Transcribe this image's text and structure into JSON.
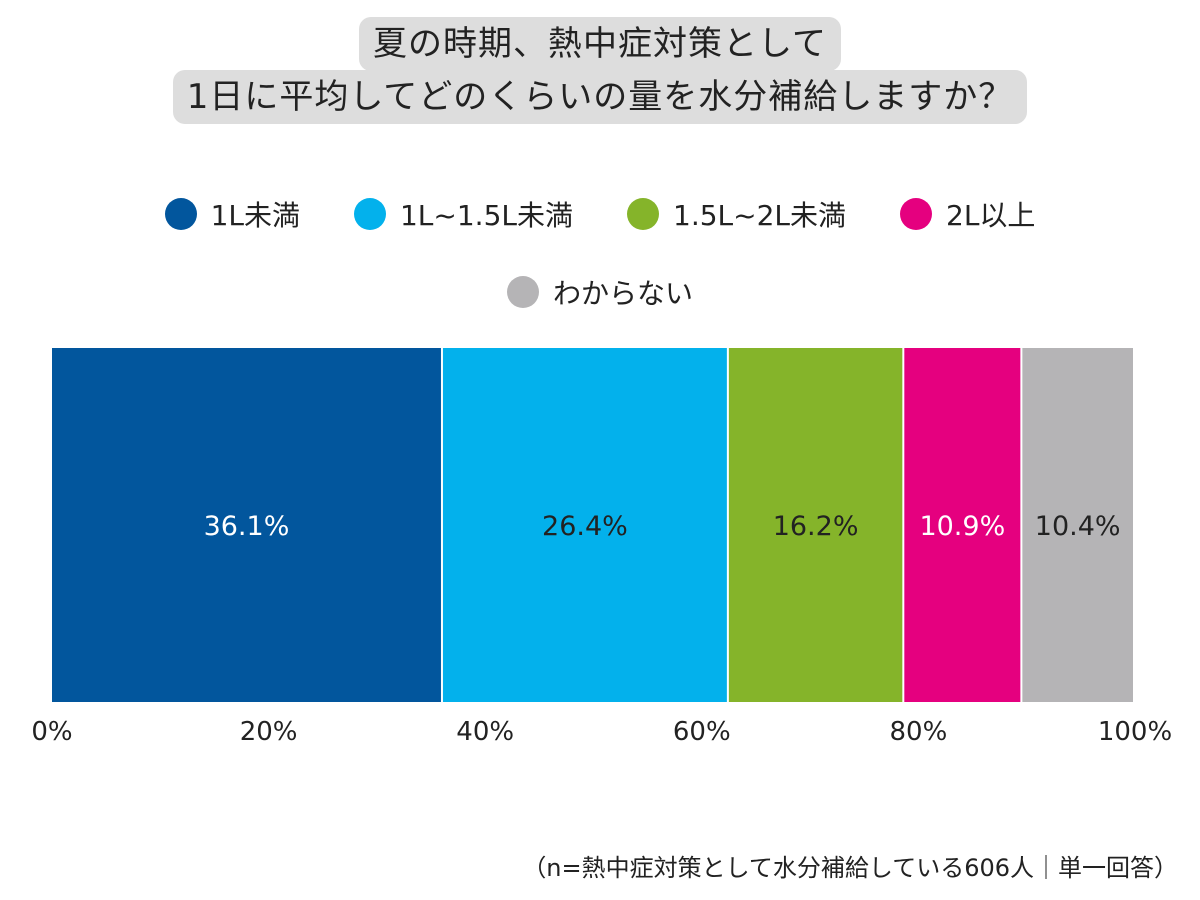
{
  "title": {
    "line1": "夏の時期、熱中症対策として",
    "line2": "1日に平均してどのくらいの量を水分補給しますか？"
  },
  "legend": [
    {
      "label": "1L未満",
      "color": "#02569d"
    },
    {
      "label": "1L~1.5L未満",
      "color": "#03b1ec"
    },
    {
      "label": "1.5L~2L未満",
      "color": "#85b42a"
    },
    {
      "label": "2L以上",
      "color": "#e5007f"
    },
    {
      "label": "わからない",
      "color": "#b5b4b6"
    }
  ],
  "chart_data": {
    "type": "bar",
    "orientation": "horizontal-stacked",
    "categories": [
      ""
    ],
    "series": [
      {
        "name": "1L未満",
        "values": [
          36.1
        ],
        "label": "36.1%",
        "color": "#02569d",
        "label_color": "#ffffff"
      },
      {
        "name": "1L~1.5L未満",
        "values": [
          26.4
        ],
        "label": "26.4%",
        "color": "#03b1ec",
        "label_color": "#222222"
      },
      {
        "name": "1.5L~2L未満",
        "values": [
          16.2
        ],
        "label": "16.2%",
        "color": "#85b42a",
        "label_color": "#222222"
      },
      {
        "name": "2L以上",
        "values": [
          10.9
        ],
        "label": "10.9%",
        "color": "#e5007f",
        "label_color": "#ffffff"
      },
      {
        "name": "わからない",
        "values": [
          10.4
        ],
        "label": "10.4%",
        "color": "#b5b4b6",
        "label_color": "#222222"
      }
    ],
    "xlim": [
      0,
      100
    ],
    "x_ticks": [
      {
        "value": 0,
        "label": "0%"
      },
      {
        "value": 20,
        "label": "20%"
      },
      {
        "value": 40,
        "label": "40%"
      },
      {
        "value": 60,
        "label": "60%"
      },
      {
        "value": 80,
        "label": "80%"
      },
      {
        "value": 100,
        "label": "100%"
      }
    ],
    "grid": false,
    "legend_position": "top"
  },
  "footnote": "（n=熱中症対策として水分補給している606人｜単一回答）"
}
